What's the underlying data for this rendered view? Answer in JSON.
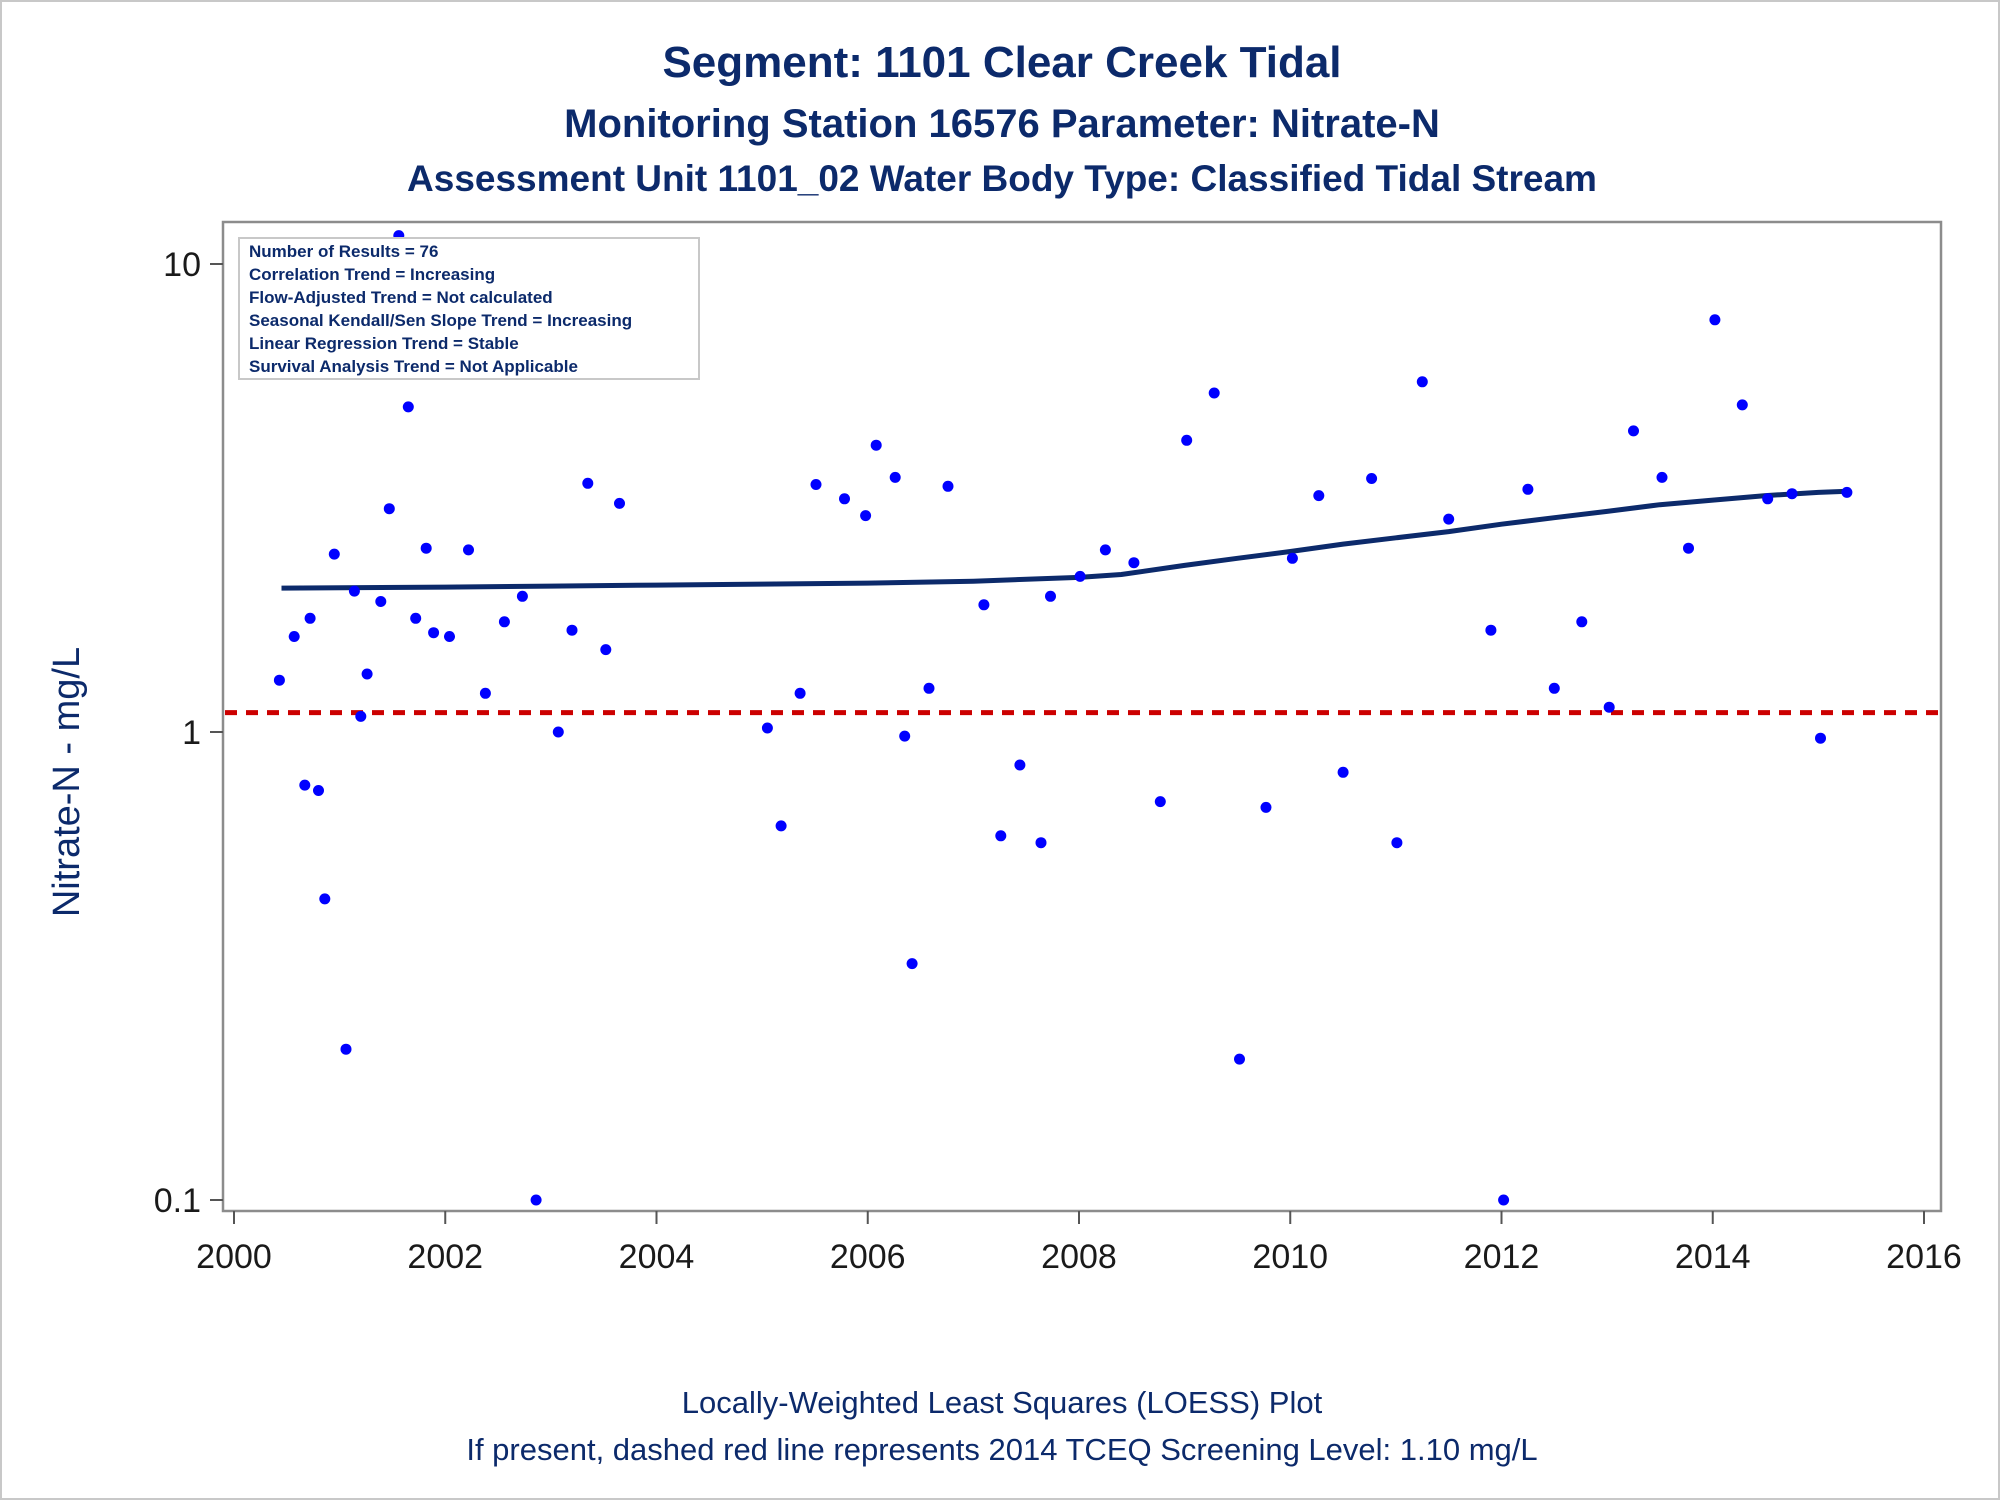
{
  "header": {
    "title": "Segment: 1101  Clear Creek Tidal",
    "subtitle": "Monitoring Station 16576 Parameter: Nitrate-N",
    "subtitle2": "Assessment Unit 1101_02   Water Body Type: Classified Tidal Stream"
  },
  "footer": {
    "line1": "Locally-Weighted Least Squares (LOESS) Plot",
    "line2": "If present, dashed red line represents 2014 TCEQ Screening Level: 1.10 mg/L"
  },
  "stats_box": {
    "lines": [
      "Number of Results = 76",
      "Correlation Trend = Increasing",
      "Flow-Adjusted Trend = Not calculated",
      "Seasonal Kendall/Sen Slope Trend = Increasing",
      "Linear Regression Trend = Stable",
      "Survival Analysis Trend = Not Applicable"
    ]
  },
  "colors": {
    "points": "#0000ff",
    "loess": "#0c2a6b",
    "screening": "#cc0000",
    "text": "#0c2a6b"
  },
  "chart_data": {
    "type": "scatter",
    "ylabel": "Nitrate-N - mg/L",
    "xlabel": "",
    "y_scale": "log",
    "xlim": [
      2000,
      2016
    ],
    "ylim": [
      0.1,
      12
    ],
    "x_ticks": [
      2000,
      2002,
      2004,
      2006,
      2008,
      2010,
      2012,
      2014,
      2016
    ],
    "y_ticks": [
      {
        "value": 0.1,
        "label": "0.1"
      },
      {
        "value": 1,
        "label": "1"
      },
      {
        "value": 10,
        "label": "10"
      }
    ],
    "screening_level": 1.1,
    "points": [
      {
        "x": 2000.43,
        "y": 1.29
      },
      {
        "x": 2000.57,
        "y": 1.6
      },
      {
        "x": 2000.67,
        "y": 0.77
      },
      {
        "x": 2000.72,
        "y": 1.75
      },
      {
        "x": 2000.8,
        "y": 0.75
      },
      {
        "x": 2000.86,
        "y": 0.44
      },
      {
        "x": 2000.95,
        "y": 2.4
      },
      {
        "x": 2001.06,
        "y": 0.21
      },
      {
        "x": 2001.14,
        "y": 2.0
      },
      {
        "x": 2001.2,
        "y": 1.08
      },
      {
        "x": 2001.26,
        "y": 1.33
      },
      {
        "x": 2001.39,
        "y": 1.9
      },
      {
        "x": 2001.47,
        "y": 3.0
      },
      {
        "x": 2001.56,
        "y": 11.5
      },
      {
        "x": 2001.65,
        "y": 4.95
      },
      {
        "x": 2001.72,
        "y": 1.75
      },
      {
        "x": 2001.82,
        "y": 2.47
      },
      {
        "x": 2001.89,
        "y": 1.63
      },
      {
        "x": 2002.04,
        "y": 1.6
      },
      {
        "x": 2002.22,
        "y": 2.45
      },
      {
        "x": 2002.38,
        "y": 1.21
      },
      {
        "x": 2002.56,
        "y": 1.72
      },
      {
        "x": 2002.73,
        "y": 1.95
      },
      {
        "x": 2002.86,
        "y": 0.1
      },
      {
        "x": 2003.07,
        "y": 1.0
      },
      {
        "x": 2003.2,
        "y": 1.65
      },
      {
        "x": 2003.35,
        "y": 3.4
      },
      {
        "x": 2003.52,
        "y": 1.5
      },
      {
        "x": 2003.65,
        "y": 3.08
      },
      {
        "x": 2005.05,
        "y": 1.02
      },
      {
        "x": 2005.18,
        "y": 0.63
      },
      {
        "x": 2005.36,
        "y": 1.21
      },
      {
        "x": 2005.51,
        "y": 3.38
      },
      {
        "x": 2005.78,
        "y": 3.15
      },
      {
        "x": 2005.98,
        "y": 2.9
      },
      {
        "x": 2006.08,
        "y": 4.1
      },
      {
        "x": 2006.26,
        "y": 3.5
      },
      {
        "x": 2006.35,
        "y": 0.98
      },
      {
        "x": 2006.42,
        "y": 0.32
      },
      {
        "x": 2006.58,
        "y": 1.24
      },
      {
        "x": 2006.76,
        "y": 3.35
      },
      {
        "x": 2007.1,
        "y": 1.87
      },
      {
        "x": 2007.26,
        "y": 0.6
      },
      {
        "x": 2007.44,
        "y": 0.85
      },
      {
        "x": 2007.64,
        "y": 0.58
      },
      {
        "x": 2007.73,
        "y": 1.95
      },
      {
        "x": 2008.01,
        "y": 2.15
      },
      {
        "x": 2008.25,
        "y": 2.45
      },
      {
        "x": 2008.52,
        "y": 2.3
      },
      {
        "x": 2008.77,
        "y": 0.71
      },
      {
        "x": 2009.02,
        "y": 4.2
      },
      {
        "x": 2009.28,
        "y": 5.3
      },
      {
        "x": 2009.52,
        "y": 0.2
      },
      {
        "x": 2009.77,
        "y": 0.69
      },
      {
        "x": 2010.02,
        "y": 2.35
      },
      {
        "x": 2010.27,
        "y": 3.2
      },
      {
        "x": 2010.5,
        "y": 0.82
      },
      {
        "x": 2010.77,
        "y": 3.48
      },
      {
        "x": 2011.01,
        "y": 0.58
      },
      {
        "x": 2011.25,
        "y": 5.6
      },
      {
        "x": 2011.5,
        "y": 2.85
      },
      {
        "x": 2011.9,
        "y": 1.65
      },
      {
        "x": 2012.02,
        "y": 0.1
      },
      {
        "x": 2012.25,
        "y": 3.3
      },
      {
        "x": 2012.5,
        "y": 1.24
      },
      {
        "x": 2012.76,
        "y": 1.72
      },
      {
        "x": 2013.02,
        "y": 1.13
      },
      {
        "x": 2013.25,
        "y": 4.4
      },
      {
        "x": 2013.52,
        "y": 3.5
      },
      {
        "x": 2013.77,
        "y": 2.47
      },
      {
        "x": 2014.02,
        "y": 7.6
      },
      {
        "x": 2014.28,
        "y": 5.0
      },
      {
        "x": 2014.52,
        "y": 3.15
      },
      {
        "x": 2014.75,
        "y": 3.23
      },
      {
        "x": 2015.02,
        "y": 0.97
      },
      {
        "x": 2015.27,
        "y": 3.25
      }
    ],
    "loess_line": [
      {
        "x": 2000.45,
        "y": 2.03
      },
      {
        "x": 2002.0,
        "y": 2.04
      },
      {
        "x": 2003.0,
        "y": 2.05
      },
      {
        "x": 2004.0,
        "y": 2.06
      },
      {
        "x": 2005.0,
        "y": 2.07
      },
      {
        "x": 2006.0,
        "y": 2.08
      },
      {
        "x": 2007.0,
        "y": 2.1
      },
      {
        "x": 2008.0,
        "y": 2.14
      },
      {
        "x": 2008.4,
        "y": 2.17
      },
      {
        "x": 2009.0,
        "y": 2.27
      },
      {
        "x": 2009.5,
        "y": 2.35
      },
      {
        "x": 2010.0,
        "y": 2.43
      },
      {
        "x": 2010.5,
        "y": 2.52
      },
      {
        "x": 2011.0,
        "y": 2.6
      },
      {
        "x": 2011.5,
        "y": 2.68
      },
      {
        "x": 2012.0,
        "y": 2.78
      },
      {
        "x": 2012.5,
        "y": 2.87
      },
      {
        "x": 2013.0,
        "y": 2.96
      },
      {
        "x": 2013.5,
        "y": 3.06
      },
      {
        "x": 2014.0,
        "y": 3.13
      },
      {
        "x": 2014.5,
        "y": 3.2
      },
      {
        "x": 2015.0,
        "y": 3.25
      },
      {
        "x": 2015.28,
        "y": 3.27
      }
    ]
  }
}
